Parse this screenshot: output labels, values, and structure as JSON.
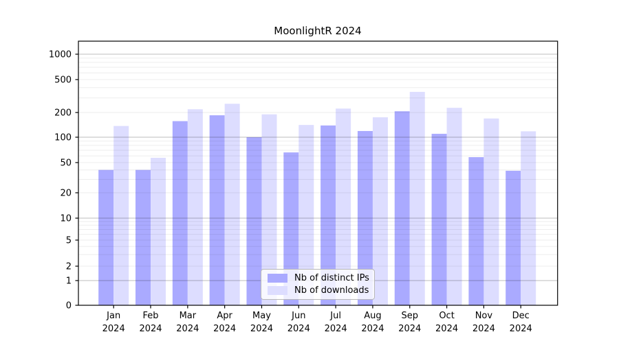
{
  "chart_data": {
    "type": "bar",
    "title": "MoonlightR 2024",
    "categories": [
      "Jan",
      "Feb",
      "Mar",
      "Apr",
      "May",
      "Jun",
      "Jul",
      "Aug",
      "Sep",
      "Oct",
      "Nov",
      "Dec"
    ],
    "year": "2024",
    "series": [
      {
        "name": "Nb of distinct IPs",
        "color": "#aaaaff",
        "values": [
          40,
          40,
          157,
          185,
          100,
          66,
          139,
          119,
          207,
          110,
          58,
          39
        ]
      },
      {
        "name": "Nb of downloads",
        "color": "#ddddff",
        "values": [
          137,
          57,
          219,
          255,
          190,
          141,
          223,
          175,
          355,
          228,
          169,
          118
        ]
      }
    ],
    "xlabel": "",
    "ylabel": "",
    "yscale": "log-with-zero",
    "ylim": [
      0,
      1000
    ],
    "yticks": [
      0,
      1,
      2,
      5,
      10,
      20,
      50,
      100,
      200,
      500,
      1000
    ],
    "grid": true,
    "legend_position": "lower center inside plot",
    "colors": {
      "major_grid": "rgba(0,0,0,0.26)",
      "minor_grid": "rgba(0,0,0,0.07)",
      "axis": "#000000",
      "text": "#000000"
    }
  }
}
